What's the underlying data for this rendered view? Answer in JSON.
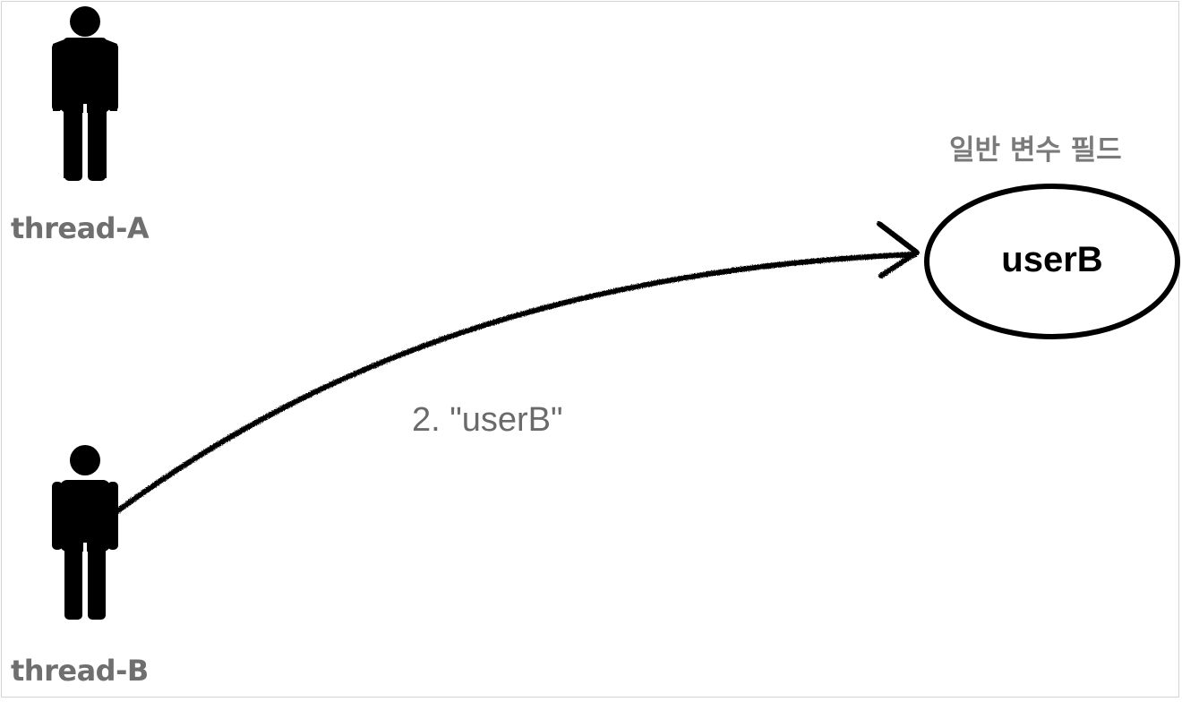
{
  "threads": [
    {
      "id": "a",
      "label": "thread-A",
      "icon": "person-icon"
    },
    {
      "id": "b",
      "label": "thread-B",
      "icon": "person-icon"
    }
  ],
  "field": {
    "title": "일반 변수 필드",
    "value": "userB"
  },
  "step": {
    "label": "2. \"userB\""
  },
  "colors": {
    "person": "#000000",
    "label": "#6f6f6f",
    "arrow": "#000000",
    "ellipse_stroke": "#000000"
  }
}
